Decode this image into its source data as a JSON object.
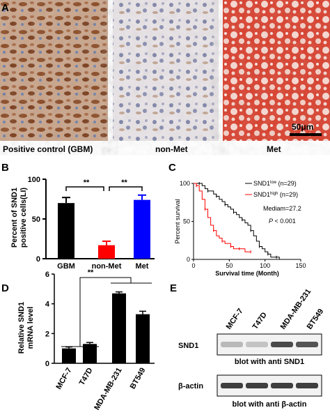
{
  "panel_a": {
    "label": "A",
    "images": [
      {
        "caption": "Positive control (GBM)"
      },
      {
        "caption": "non-Met"
      },
      {
        "caption": "Met"
      }
    ],
    "scale_bar": "50μm"
  },
  "panel_b": {
    "label": "B",
    "significance": [
      "**",
      "**"
    ]
  },
  "panel_c": {
    "label": "C"
  },
  "panel_d": {
    "label": "D",
    "significance": "**"
  },
  "panel_e": {
    "label": "E",
    "cell_lines": [
      "MCF-7",
      "T47D",
      "MDA-MB-231",
      "BT549"
    ],
    "blots": [
      {
        "name": "SND1",
        "caption": "blot with anti SND1",
        "intensities": [
          0.25,
          0.2,
          0.75,
          0.7
        ]
      },
      {
        "name": "β-actin",
        "caption": "blot with anti β-actin",
        "intensities": [
          0.8,
          0.8,
          0.8,
          0.8
        ]
      }
    ]
  },
  "chart_data": [
    {
      "type": "bar",
      "panel": "B",
      "categories": [
        "GBM",
        "non-Met",
        "Met"
      ],
      "values": [
        70,
        17,
        74
      ],
      "errors": [
        7,
        5,
        6
      ],
      "colors": [
        "#000000",
        "#ff0000",
        "#0000ff"
      ],
      "ylabel": "Percent of SND1 positive cells(LI)",
      "ylim": [
        0,
        100
      ],
      "yticks": [
        "0",
        "50",
        "100"
      ]
    },
    {
      "type": "line",
      "panel": "C",
      "xlabel": "Survival time (Month)",
      "ylabel": "Percent survival",
      "xlim": [
        0,
        150
      ],
      "ylim": [
        0,
        100
      ],
      "xticks": [
        "0",
        "50",
        "100",
        "150"
      ],
      "yticks": [
        "0",
        "50",
        "100"
      ],
      "series": [
        {
          "name": "SND1",
          "superscript": "low",
          "n": "(n=29)",
          "color": "#000000",
          "x": [
            0,
            8,
            12,
            16,
            20,
            24,
            28,
            32,
            36,
            40,
            44,
            48,
            52,
            56,
            60,
            64,
            68,
            72,
            76,
            80,
            84,
            88,
            92,
            96,
            100,
            104,
            108,
            112,
            116,
            120
          ],
          "y": [
            100,
            100,
            97,
            93,
            90,
            90,
            86,
            83,
            79,
            76,
            72,
            69,
            66,
            62,
            59,
            55,
            52,
            48,
            45,
            38,
            31,
            24,
            17,
            14,
            10,
            7,
            3,
            3,
            3,
            0
          ]
        },
        {
          "name": "SND1",
          "superscript": "high",
          "n": "(n=29)",
          "color": "#ff0000",
          "x": [
            0,
            4,
            8,
            12,
            16,
            20,
            24,
            28,
            32,
            36,
            40,
            44,
            48,
            52,
            56,
            60,
            64,
            68,
            72,
            80
          ],
          "y": [
            100,
            97,
            90,
            79,
            66,
            55,
            45,
            38,
            31,
            28,
            24,
            21,
            21,
            17,
            14,
            14,
            14,
            14,
            10,
            10
          ]
        }
      ],
      "annotations": [
        "Mediam=27.2",
        "P < 0.001"
      ]
    },
    {
      "type": "bar",
      "panel": "D",
      "categories": [
        "MCF-7",
        "T47D",
        "MDA-MB-231",
        "BT549"
      ],
      "values": [
        1.0,
        1.3,
        4.7,
        3.3
      ],
      "errors": [
        0.1,
        0.1,
        0.1,
        0.2
      ],
      "ylabel": "Relative SND1 mRNA level",
      "ylim": [
        0,
        6
      ],
      "yticks": [
        "0",
        "2",
        "4",
        "6"
      ]
    }
  ]
}
